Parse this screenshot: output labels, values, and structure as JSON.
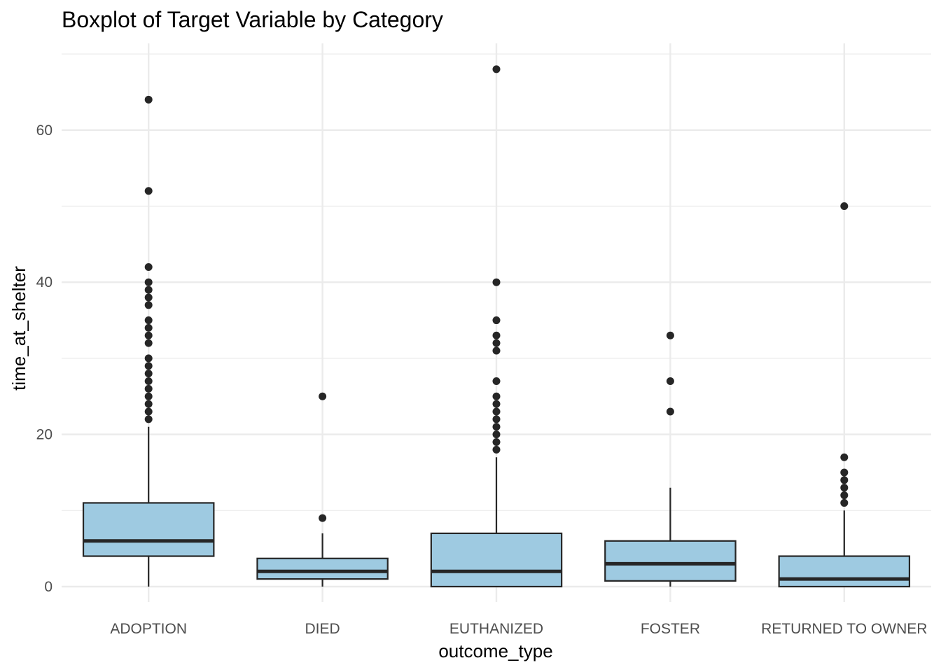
{
  "chart_data": {
    "type": "boxplot",
    "title": "Boxplot of Target Variable by Category",
    "xlabel": "outcome_type",
    "ylabel": "time_at_shelter",
    "ylim": [
      -4,
      71.5
    ],
    "yticks": [
      0,
      20,
      40,
      60
    ],
    "grid": true,
    "box_color": "#9ecae1",
    "line_color": "#262626",
    "grid_color": "#ebebeb",
    "categories": [
      "ADOPTION",
      "DIED",
      "EUTHANIZED",
      "FOSTER",
      "RETURNED TO OWNER"
    ],
    "boxes": [
      {
        "category": "ADOPTION",
        "whisker_low": 0,
        "q1": 4,
        "median": 6,
        "q3": 11,
        "whisker_high": 21,
        "outliers": [
          22,
          23,
          24,
          25,
          26,
          27,
          28,
          29,
          30,
          32,
          33,
          34,
          35,
          37,
          38,
          39,
          40,
          42,
          52,
          64
        ]
      },
      {
        "category": "DIED",
        "whisker_low": 0,
        "q1": 1,
        "median": 2,
        "q3": 3.7,
        "whisker_high": 7,
        "outliers": [
          9,
          25
        ]
      },
      {
        "category": "EUTHANIZED",
        "whisker_low": 0,
        "q1": 0,
        "median": 2,
        "q3": 7,
        "whisker_high": 17,
        "outliers": [
          18,
          19,
          20,
          21,
          22,
          23,
          24,
          25,
          27,
          31,
          32,
          33,
          35,
          40,
          68
        ]
      },
      {
        "category": "FOSTER",
        "whisker_low": 0,
        "q1": 0.75,
        "median": 3,
        "q3": 6,
        "whisker_high": 13,
        "outliers": [
          23,
          27,
          33
        ]
      },
      {
        "category": "RETURNED TO OWNER",
        "whisker_low": 0,
        "q1": 0,
        "median": 1,
        "q3": 4,
        "whisker_high": 10,
        "outliers": [
          11,
          12,
          13,
          14,
          15,
          17,
          50
        ]
      }
    ]
  }
}
